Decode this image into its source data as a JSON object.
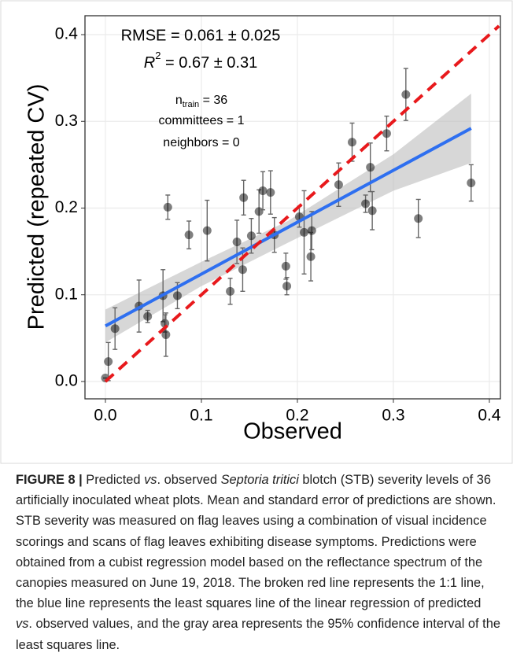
{
  "chart_data": {
    "type": "scatter",
    "x_label": "Observed",
    "y_label": "Predicted (repeated CV)",
    "xlim": [
      -0.0213,
      0.4115
    ],
    "ylim": [
      -0.02,
      0.4218
    ],
    "xticks": [
      {
        "value": 0,
        "label": "0.0"
      },
      0.1,
      0.2,
      0.3,
      0.4
    ],
    "yticks": [
      {
        "value": 0,
        "label": "0.0"
      },
      0.1,
      0.2,
      0.3,
      0.4
    ],
    "grid": true,
    "color": "#000000",
    "error_color": "#666666",
    "x": [
      0.0,
      0.003,
      0.01,
      0.035,
      0.044,
      0.06,
      0.062,
      0.063,
      0.065,
      0.075,
      0.087,
      0.106,
      0.13,
      0.137,
      0.143,
      0.144,
      0.152,
      0.16,
      0.164,
      0.172,
      0.176,
      0.188,
      0.189,
      0.202,
      0.207,
      0.214,
      0.215,
      0.243,
      0.257,
      0.271,
      0.276,
      0.278,
      0.293,
      0.313,
      0.326,
      0.381
    ],
    "values": [
      0.004,
      0.023,
      0.061,
      0.087,
      0.075,
      0.099,
      0.067,
      0.054,
      0.201,
      0.099,
      0.169,
      0.174,
      0.104,
      0.161,
      0.129,
      0.212,
      0.168,
      0.196,
      0.22,
      0.218,
      0.169,
      0.133,
      0.11,
      0.19,
      0.172,
      0.144,
      0.174,
      0.227,
      0.276,
      0.205,
      0.247,
      0.197,
      0.286,
      0.331,
      0.188,
      0.229
    ],
    "errors": [
      0.0,
      0.022,
      0.024,
      0.03,
      0.007,
      0.03,
      0.01,
      0.025,
      0.014,
      0.015,
      0.016,
      0.035,
      0.015,
      0.025,
      0.025,
      0.02,
      0.02,
      0.025,
      0.022,
      0.025,
      0.02,
      0.015,
      0.01,
      0.012,
      0.048,
      0.028,
      0.022,
      0.025,
      0.022,
      0.01,
      0.028,
      0.022,
      0.02,
      0.03,
      0.022,
      0.021
    ],
    "regression": {
      "color": "#2e6ff0",
      "x": [
        0.0,
        0.381
      ],
      "values": [
        0.064,
        0.292
      ]
    },
    "confidence_band": {
      "color": "#bdbdbd",
      "x": [
        0.0,
        0.1,
        0.19,
        0.3,
        0.381
      ],
      "lower": [
        0.045,
        0.11,
        0.16,
        0.22,
        0.252
      ],
      "upper": [
        0.083,
        0.138,
        0.185,
        0.262,
        0.332
      ]
    },
    "reference_line": {
      "color": "#e8191c",
      "x": [
        0.0,
        0.41
      ],
      "values": [
        0.0,
        0.41
      ]
    },
    "annotations": {
      "rmse": "RMSE = 0.061 ± 0.025",
      "r2": {
        "base": "R",
        "sup": "2",
        "rest": " = 0.67 ± 0.31"
      },
      "ntrain": {
        "base": "n",
        "sub": "train",
        "rest": " = 36"
      },
      "committees": "committees = 1",
      "neighbors": "neighbors = 0"
    }
  },
  "caption": {
    "label": "FIGURE 8 |",
    "segments": [
      {
        "text": " Predicted ",
        "italic": false
      },
      {
        "text": "vs",
        "italic": true
      },
      {
        "text": ". observed ",
        "italic": false
      },
      {
        "text": "Septoria tritici",
        "italic": true
      },
      {
        "text": " blotch (STB) severity levels of 36 artificially inoculated wheat plots. Mean and standard error of predictions are shown. STB severity was measured on flag leaves using a combination of visual incidence scorings and scans of flag leaves exhibiting disease symptoms. Predictions were obtained from a cubist regression model based on the reflectance spectrum of the canopies measured on June 19, 2018. The broken red line represents the 1:1 line, the blue line represents the least squares line of the linear regression of predicted ",
        "italic": false
      },
      {
        "text": "vs",
        "italic": true
      },
      {
        "text": ". observed values, and the gray area represents the 95% confidence interval of the least squares line.",
        "italic": false
      }
    ]
  }
}
